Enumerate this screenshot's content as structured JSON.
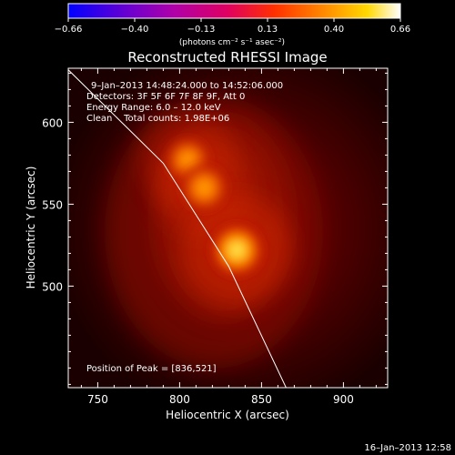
{
  "colorbar": {
    "ticks": [
      "−0.66",
      "−0.40",
      "−0.13",
      "0.13",
      "0.40",
      "0.66"
    ],
    "units_label": "(photons cm⁻² s⁻¹ asec⁻²)"
  },
  "title": "Reconstructed RHESSI Image",
  "info": {
    "time_range": "9–Jan–2013 14:48:24.000 to 14:52:06.000",
    "detectors": "Detectors: 3F 5F 6F 7F 8F 9F, Att 0",
    "energy_range": "Energy Range: 6.0 – 12.0 keV",
    "clean_line": "Clean    Total counts: 1.98E+06"
  },
  "peak_label": "Position of Peak = [836,521]",
  "footer_timestamp": "16–Jan–2013 12:58",
  "chart_data": {
    "type": "heatmap",
    "title": "Reconstructed RHESSI Image",
    "xlabel": "Heliocentric X (arcsec)",
    "ylabel": "Heliocentric Y (arcsec)",
    "xlim": [
      732,
      927
    ],
    "ylim": [
      438,
      633
    ],
    "xticks": [
      750,
      800,
      850,
      900
    ],
    "yticks": [
      500,
      550,
      600
    ],
    "colorbar_range": [
      -0.66,
      0.66
    ],
    "colormap": "red-temperature",
    "sources": [
      {
        "x": 835,
        "y": 522,
        "intensity": 1.0
      },
      {
        "x": 815,
        "y": 560,
        "intensity": 0.75
      },
      {
        "x": 805,
        "y": 577,
        "intensity": 0.65
      }
    ],
    "peak": [
      836,
      521
    ],
    "limb_line": [
      [
        730,
        634
      ],
      [
        790,
        575
      ],
      [
        830,
        512
      ],
      [
        865,
        438
      ]
    ]
  }
}
